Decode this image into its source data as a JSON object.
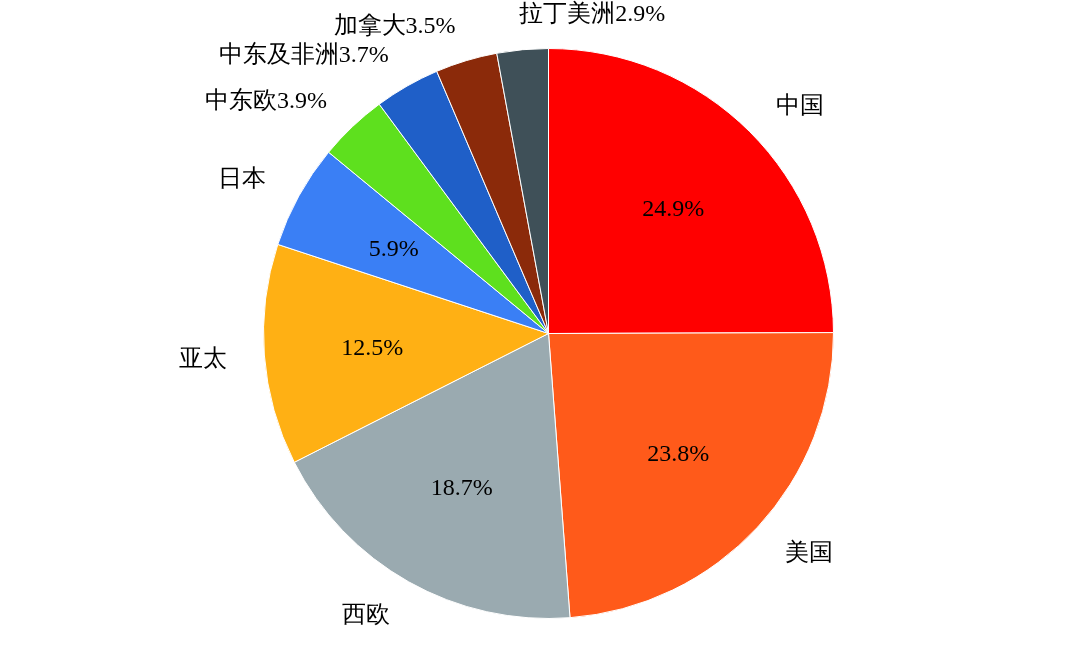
{
  "chart_data": {
    "type": "pie",
    "categories": [
      "中国",
      "美国",
      "西欧",
      "亚太",
      "日本",
      "中东欧",
      "中东及非洲",
      "加拿大",
      "拉丁美洲"
    ],
    "values": [
      24.9,
      23.8,
      18.7,
      12.5,
      5.9,
      3.9,
      3.7,
      3.5,
      2.9
    ],
    "value_labels": [
      "24.9%",
      "23.8%",
      "18.7%",
      "12.5%",
      "5.9%",
      "3.9%",
      "3.7%",
      "3.5%",
      "2.9%"
    ],
    "colors": [
      "#ff0000",
      "#ff5a1a",
      "#9aaab0",
      "#ffb014",
      "#3a7ff5",
      "#5ee01e",
      "#1f5fc8",
      "#8b2a0a",
      "#3f5058"
    ]
  }
}
